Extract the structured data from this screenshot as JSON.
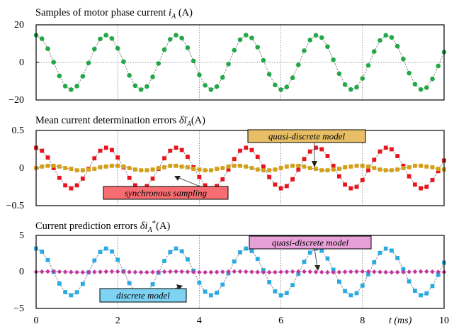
{
  "chart_data": [
    {
      "type": "scatter",
      "title": "Samples of motor phase current iA (A)",
      "title_parts": {
        "prefix": "Samples of motor phase current ",
        "symbol": "i",
        "sub": "A",
        "unit": " (A)"
      },
      "ylim": [
        -20,
        20
      ],
      "yticks": [
        {
          "value": -20,
          "label": "−20"
        },
        {
          "value": 0,
          "label": "0"
        },
        {
          "value": 20,
          "label": "20"
        }
      ],
      "xlim": [
        0,
        10
      ],
      "grid": "vertical dotted at x = 2, 4, 6, 8; dotted line at y = 0",
      "series": [
        {
          "color": "#22a846",
          "marker": "circle",
          "amplitude": 14.5,
          "period_ms": 2.45,
          "x": [
            0.0,
            0.143,
            0.286,
            0.429,
            0.571,
            0.714,
            0.857,
            1.0,
            1.143,
            1.286,
            1.429,
            1.571,
            1.714,
            1.857,
            2.0,
            2.143,
            2.286,
            2.429,
            2.571,
            2.714,
            2.857,
            3.0,
            3.143,
            3.286,
            3.429,
            3.571,
            3.714,
            3.857,
            4.0,
            4.143,
            4.286,
            4.429,
            4.571,
            4.714,
            4.857,
            5.0,
            5.143,
            5.286,
            5.429,
            5.571,
            5.714,
            5.857,
            6.0,
            6.143,
            6.286,
            6.429,
            6.571,
            6.714,
            6.857,
            7.0,
            7.143,
            7.286,
            7.429,
            7.571,
            7.714,
            7.857,
            8.0,
            8.143,
            8.286,
            8.429,
            8.571,
            8.714,
            8.857,
            9.0,
            9.143,
            9.286,
            9.429,
            9.571,
            9.714,
            9.857,
            10.0
          ],
          "y": [
            14.5,
            12.6,
            7.3,
            0.1,
            -7.2,
            -12.6,
            -14.5,
            -12.6,
            -7.4,
            -0.3,
            7.1,
            12.5,
            14.5,
            12.7,
            7.5,
            0.4,
            -6.9,
            -12.4,
            -14.5,
            -12.8,
            -7.7,
            -0.6,
            6.8,
            12.3,
            14.5,
            12.9,
            7.8,
            0.8,
            -6.6,
            -12.2,
            -14.5,
            -12.9,
            -8.0,
            -0.9,
            6.5,
            12.1,
            14.5,
            13.0,
            8.1,
            1.1,
            -6.3,
            -12.0,
            -14.5,
            -13.1,
            -8.2,
            -1.3,
            6.2,
            11.9,
            14.4,
            13.2,
            8.4,
            1.4,
            -6.0,
            -11.8,
            -14.4,
            -13.2,
            -8.5,
            -1.6,
            5.8,
            11.7,
            14.4,
            13.3,
            8.6,
            1.8,
            -5.7,
            -11.6,
            -14.4,
            -13.4,
            -8.8,
            -1.9,
            5.5
          ]
        }
      ]
    },
    {
      "type": "line",
      "title": "Mean current determination errors δīA(A)",
      "title_parts": {
        "prefix": "Mean current determination errors ",
        "symbol": "δī",
        "sub": "A",
        "unit": "(A)"
      },
      "ylim": [
        -0.5,
        0.5
      ],
      "yticks": [
        {
          "value": -0.5,
          "label": "−0.5"
        },
        {
          "value": 0,
          "label": "0"
        },
        {
          "value": 0.5,
          "label": "0.5"
        }
      ],
      "xlim": [
        0,
        10
      ],
      "grid": "vertical dotted at x = 2, 4, 6, 8",
      "series": [
        {
          "name": "synchronous sampling",
          "color": "#e8131c",
          "marker": "square",
          "amplitude": 0.27,
          "period_ms": 2.45,
          "x": [
            0.0,
            0.143,
            0.286,
            0.429,
            0.571,
            0.714,
            0.857,
            1.0,
            1.143,
            1.286,
            1.429,
            1.571,
            1.714,
            1.857,
            2.0,
            2.143,
            2.286,
            2.429,
            2.571,
            2.714,
            2.857,
            3.0,
            3.143,
            3.286,
            3.429,
            3.571,
            3.714,
            3.857,
            4.0,
            4.143,
            4.286,
            4.429,
            4.571,
            4.714,
            4.857,
            5.0,
            5.143,
            5.286,
            5.429,
            5.571,
            5.714,
            5.857,
            6.0,
            6.143,
            6.286,
            6.429,
            6.571,
            6.714,
            6.857,
            7.0,
            7.143,
            7.286,
            7.429,
            7.571,
            7.714,
            7.857,
            8.0,
            8.143,
            8.286,
            8.429,
            8.571,
            8.714,
            8.857,
            9.0,
            9.143,
            9.286,
            9.429,
            9.571,
            9.714,
            9.857,
            10.0
          ],
          "y": [
            0.27,
            0.23,
            0.14,
            0.0,
            -0.13,
            -0.23,
            -0.27,
            -0.23,
            -0.14,
            -0.01,
            0.13,
            0.23,
            0.27,
            0.24,
            0.14,
            0.01,
            -0.13,
            -0.23,
            -0.27,
            -0.24,
            -0.14,
            -0.01,
            0.13,
            0.23,
            0.27,
            0.24,
            0.15,
            0.01,
            -0.12,
            -0.23,
            -0.27,
            -0.24,
            -0.15,
            -0.02,
            0.12,
            0.23,
            0.27,
            0.24,
            0.15,
            0.02,
            -0.12,
            -0.22,
            -0.27,
            -0.24,
            -0.15,
            -0.02,
            0.12,
            0.22,
            0.27,
            0.25,
            0.16,
            0.03,
            -0.11,
            -0.22,
            -0.27,
            -0.25,
            -0.16,
            -0.03,
            0.11,
            0.22,
            0.27,
            0.25,
            0.16,
            0.03,
            -0.11,
            -0.22,
            -0.27,
            -0.25,
            -0.16,
            -0.04,
            0.1
          ]
        },
        {
          "name": "quasi-discrete model",
          "color": "#d4a017",
          "marker": "square",
          "amplitude": 0.03,
          "period_ms": 2.45,
          "x": [
            0.0,
            0.143,
            0.286,
            0.429,
            0.571,
            0.714,
            0.857,
            1.0,
            1.143,
            1.286,
            1.429,
            1.571,
            1.714,
            1.857,
            2.0,
            2.143,
            2.286,
            2.429,
            2.571,
            2.714,
            2.857,
            3.0,
            3.143,
            3.286,
            3.429,
            3.571,
            3.714,
            3.857,
            4.0,
            4.143,
            4.286,
            4.429,
            4.571,
            4.714,
            4.857,
            5.0,
            5.143,
            5.286,
            5.429,
            5.571,
            5.714,
            5.857,
            6.0,
            6.143,
            6.286,
            6.429,
            6.571,
            6.714,
            6.857,
            7.0,
            7.143,
            7.286,
            7.429,
            7.571,
            7.714,
            7.857,
            8.0,
            8.143,
            8.286,
            8.429,
            8.571,
            8.714,
            8.857,
            9.0,
            9.143,
            9.286,
            9.429,
            9.571,
            9.714,
            9.857,
            10.0
          ],
          "y": [
            0.0,
            0.02,
            0.03,
            0.03,
            0.02,
            0.0,
            -0.01,
            -0.03,
            -0.03,
            -0.02,
            -0.01,
            0.01,
            0.02,
            0.03,
            0.03,
            0.02,
            0.0,
            -0.02,
            -0.03,
            -0.03,
            -0.02,
            0.0,
            0.01,
            0.03,
            0.03,
            0.02,
            0.01,
            -0.01,
            -0.02,
            -0.03,
            -0.03,
            -0.01,
            0.0,
            0.02,
            0.03,
            0.03,
            0.02,
            0.0,
            -0.02,
            -0.03,
            -0.03,
            -0.02,
            0.0,
            0.02,
            0.03,
            0.03,
            0.02,
            0.0,
            -0.01,
            -0.03,
            -0.03,
            -0.02,
            -0.01,
            0.01,
            0.02,
            0.03,
            0.03,
            0.02,
            0.0,
            -0.02,
            -0.03,
            -0.03,
            -0.02,
            0.0,
            0.01,
            0.03,
            0.03,
            0.02,
            0.01,
            -0.01,
            -0.02
          ]
        }
      ]
    },
    {
      "type": "line",
      "title": "Current prediction errors δiA*(A)",
      "title_parts": {
        "prefix": "Current prediction errors ",
        "symbol": "δi",
        "sub": "A",
        "sup": "*",
        "unit": "(A)"
      },
      "ylim": [
        -5,
        5
      ],
      "yticks": [
        {
          "value": -5,
          "label": "−5"
        },
        {
          "value": 0,
          "label": "0"
        },
        {
          "value": 5,
          "label": "5"
        }
      ],
      "xlim": [
        0,
        10
      ],
      "xticks": [
        {
          "value": 0,
          "label": "0"
        },
        {
          "value": 2,
          "label": "2"
        },
        {
          "value": 4,
          "label": "4"
        },
        {
          "value": 6,
          "label": "6"
        },
        {
          "value": 8,
          "label": "8"
        },
        {
          "value": 10,
          "label": "10"
        }
      ],
      "xlabel": "t (ms)",
      "grid": "vertical dotted at x = 2, 4, 6, 8",
      "series": [
        {
          "name": "discrete model",
          "color": "#29abe2",
          "marker": "square",
          "amplitude": 3.2,
          "period_ms": 2.45,
          "x": [
            0.0,
            0.143,
            0.286,
            0.429,
            0.571,
            0.714,
            0.857,
            1.0,
            1.143,
            1.286,
            1.429,
            1.571,
            1.714,
            1.857,
            2.0,
            2.143,
            2.286,
            2.429,
            2.571,
            2.714,
            2.857,
            3.0,
            3.143,
            3.286,
            3.429,
            3.571,
            3.714,
            3.857,
            4.0,
            4.143,
            4.286,
            4.429,
            4.571,
            4.714,
            4.857,
            5.0,
            5.143,
            5.286,
            5.429,
            5.571,
            5.714,
            5.857,
            6.0,
            6.143,
            6.286,
            6.429,
            6.571,
            6.714,
            6.857,
            7.0,
            7.143,
            7.286,
            7.429,
            7.571,
            7.714,
            7.857,
            8.0,
            8.143,
            8.286,
            8.429,
            8.571,
            8.714,
            8.857,
            9.0,
            9.143,
            9.286,
            9.429,
            9.571,
            9.714,
            9.857,
            10.0
          ],
          "y": [
            3.2,
            2.78,
            1.62,
            0.02,
            -1.59,
            -2.77,
            -3.2,
            -2.79,
            -1.64,
            -0.06,
            1.56,
            2.75,
            3.2,
            2.8,
            1.67,
            0.09,
            -1.53,
            -2.74,
            -3.2,
            -2.82,
            -1.69,
            -0.12,
            1.5,
            2.72,
            3.2,
            2.83,
            1.72,
            0.16,
            -1.47,
            -2.7,
            -3.2,
            -2.85,
            -1.75,
            -0.19,
            1.44,
            2.68,
            3.2,
            2.86,
            1.78,
            0.23,
            -1.41,
            -2.66,
            -3.2,
            -2.88,
            -1.81,
            -0.26,
            1.38,
            2.64,
            3.19,
            2.89,
            1.84,
            0.3,
            -1.35,
            -2.62,
            -3.19,
            -2.91,
            -1.87,
            -0.33,
            1.32,
            2.6,
            3.19,
            2.92,
            1.9,
            0.37,
            -1.29,
            -2.58,
            -3.19,
            -2.94,
            -1.93,
            -0.4,
            1.26
          ]
        },
        {
          "name": "quasi-discrete model",
          "color": "#c2359e",
          "marker": "diamond",
          "amplitude": 0.05,
          "period_ms": 2.45,
          "x": [
            0.0,
            0.143,
            0.286,
            0.429,
            0.571,
            0.714,
            0.857,
            1.0,
            1.143,
            1.286,
            1.429,
            1.571,
            1.714,
            1.857,
            2.0,
            2.143,
            2.286,
            2.429,
            2.571,
            2.714,
            2.857,
            3.0,
            3.143,
            3.286,
            3.429,
            3.571,
            3.714,
            3.857,
            4.0,
            4.143,
            4.286,
            4.429,
            4.571,
            4.714,
            4.857,
            5.0,
            5.143,
            5.286,
            5.429,
            5.571,
            5.714,
            5.857,
            6.0,
            6.143,
            6.286,
            6.429,
            6.571,
            6.714,
            6.857,
            7.0,
            7.143,
            7.286,
            7.429,
            7.571,
            7.714,
            7.857,
            8.0,
            8.143,
            8.286,
            8.429,
            8.571,
            8.714,
            8.857,
            9.0,
            9.143,
            9.286,
            9.429,
            9.571,
            9.714,
            9.857,
            10.0
          ],
          "y": [
            0.0,
            0.03,
            0.05,
            0.05,
            0.03,
            0.0,
            -0.02,
            -0.04,
            -0.05,
            -0.04,
            -0.01,
            0.01,
            0.04,
            0.05,
            0.04,
            0.02,
            -0.01,
            -0.03,
            -0.05,
            -0.05,
            -0.03,
            0.0,
            0.02,
            0.04,
            0.05,
            0.04,
            0.01,
            -0.01,
            -0.04,
            -0.05,
            -0.04,
            -0.02,
            0.01,
            0.03,
            0.05,
            0.05,
            0.03,
            0.0,
            -0.02,
            -0.04,
            -0.05,
            -0.04,
            -0.01,
            0.01,
            0.04,
            0.05,
            0.04,
            0.02,
            -0.01,
            -0.03,
            -0.05,
            -0.05,
            -0.03,
            0.0,
            0.02,
            0.04,
            0.05,
            0.04,
            0.01,
            -0.01,
            -0.04,
            -0.05,
            -0.04,
            -0.02,
            0.01,
            0.03,
            0.05,
            0.05,
            0.03,
            0.0,
            -0.02
          ]
        }
      ]
    }
  ],
  "annotations": {
    "p2_quasi": "quasi-discrete model",
    "p2_sync": "synchronous sampling",
    "p3_quasi": "quasi-discrete model",
    "p3_discrete": "discrete model"
  },
  "colors": {
    "quasi_label_bg_p2": "#e8bf66",
    "sync_label_bg": "#f86d72",
    "quasi_label_bg_p3": "#e8a0d8",
    "discrete_label_bg": "#7fd3f2",
    "grid": "#777777",
    "connector": "#8a8a8a"
  }
}
